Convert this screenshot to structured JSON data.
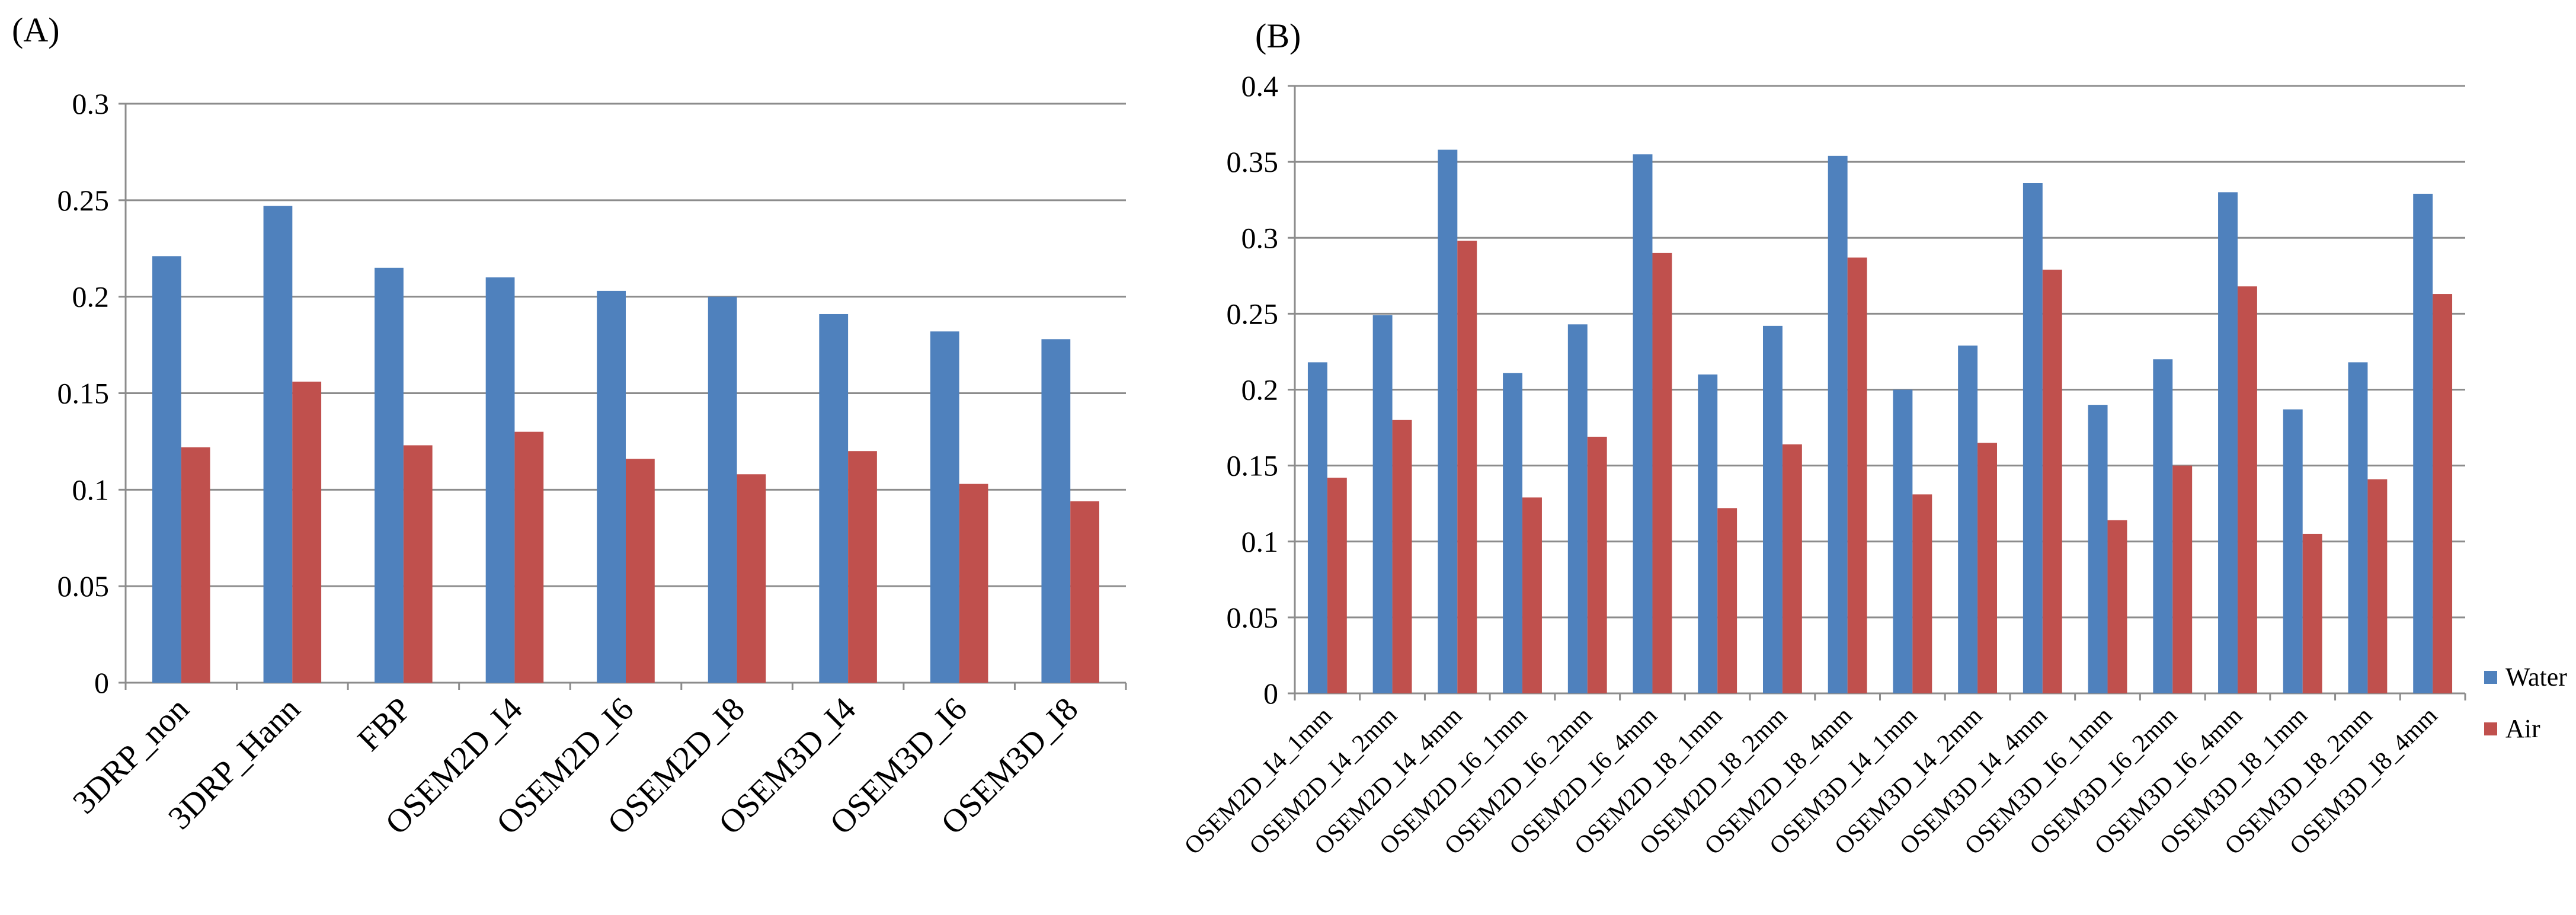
{
  "colors": {
    "water": "#4f81bd",
    "air": "#c0504d"
  },
  "chart_data": [
    {
      "panel": "(A)",
      "type": "bar",
      "categories": [
        "3DRP_non",
        "3DRP_Hann",
        "FBP",
        "OSEM2D_I4",
        "OSEM2D_I6",
        "OSEM2D_I8",
        "OSEM3D_I4",
        "OSEM3D_I6",
        "OSEM3D_I8"
      ],
      "series": [
        {
          "name": "Water",
          "values": [
            0.221,
            0.247,
            0.215,
            0.21,
            0.203,
            0.2,
            0.191,
            0.182,
            0.178
          ]
        },
        {
          "name": "Air",
          "values": [
            0.122,
            0.156,
            0.123,
            0.13,
            0.116,
            0.108,
            0.12,
            0.103,
            0.094
          ]
        }
      ],
      "ylim": [
        0,
        0.3
      ],
      "yticks": [
        "0",
        "0.05",
        "0.1",
        "0.15",
        "0.2",
        "0.25",
        "0.3"
      ],
      "legend": ""
    },
    {
      "panel": "(B)",
      "type": "bar",
      "categories": [
        "OSEM2D_I4_1mm",
        "OSEM2D_I4_2mm",
        "OSEM2D_I4_4mm",
        "OSEM2D_I6_1mm",
        "OSEM2D_I6_2mm",
        "OSEM2D_I6_4mm",
        "OSEM2D_I8_1mm",
        "OSEM2D_I8_2mm",
        "OSEM2D_I8_4mm",
        "OSEM3D_I4_1mm",
        "OSEM3D_I4_2mm",
        "OSEM3D_I4_4mm",
        "OSEM3D_I6_1mm",
        "OSEM3D_I6_2mm",
        "OSEM3D_I6_4mm",
        "OSEM3D_I8_1mm",
        "OSEM3D_I8_2mm",
        "OSEM3D_I8_4mm"
      ],
      "series": [
        {
          "name": "Water",
          "values": [
            0.218,
            0.249,
            0.358,
            0.211,
            0.243,
            0.355,
            0.21,
            0.242,
            0.354,
            0.2,
            0.229,
            0.336,
            0.19,
            0.22,
            0.33,
            0.187,
            0.218,
            0.329
          ]
        },
        {
          "name": "Air",
          "values": [
            0.142,
            0.18,
            0.298,
            0.129,
            0.169,
            0.29,
            0.122,
            0.164,
            0.287,
            0.131,
            0.165,
            0.279,
            0.114,
            0.15,
            0.268,
            0.105,
            0.141,
            0.263
          ]
        }
      ],
      "ylim": [
        0,
        0.4
      ],
      "yticks": [
        "0",
        "0.05",
        "0.1",
        "0.15",
        "0.2",
        "0.25",
        "0.3",
        "0.35",
        "0.4"
      ],
      "legend": "right"
    }
  ]
}
